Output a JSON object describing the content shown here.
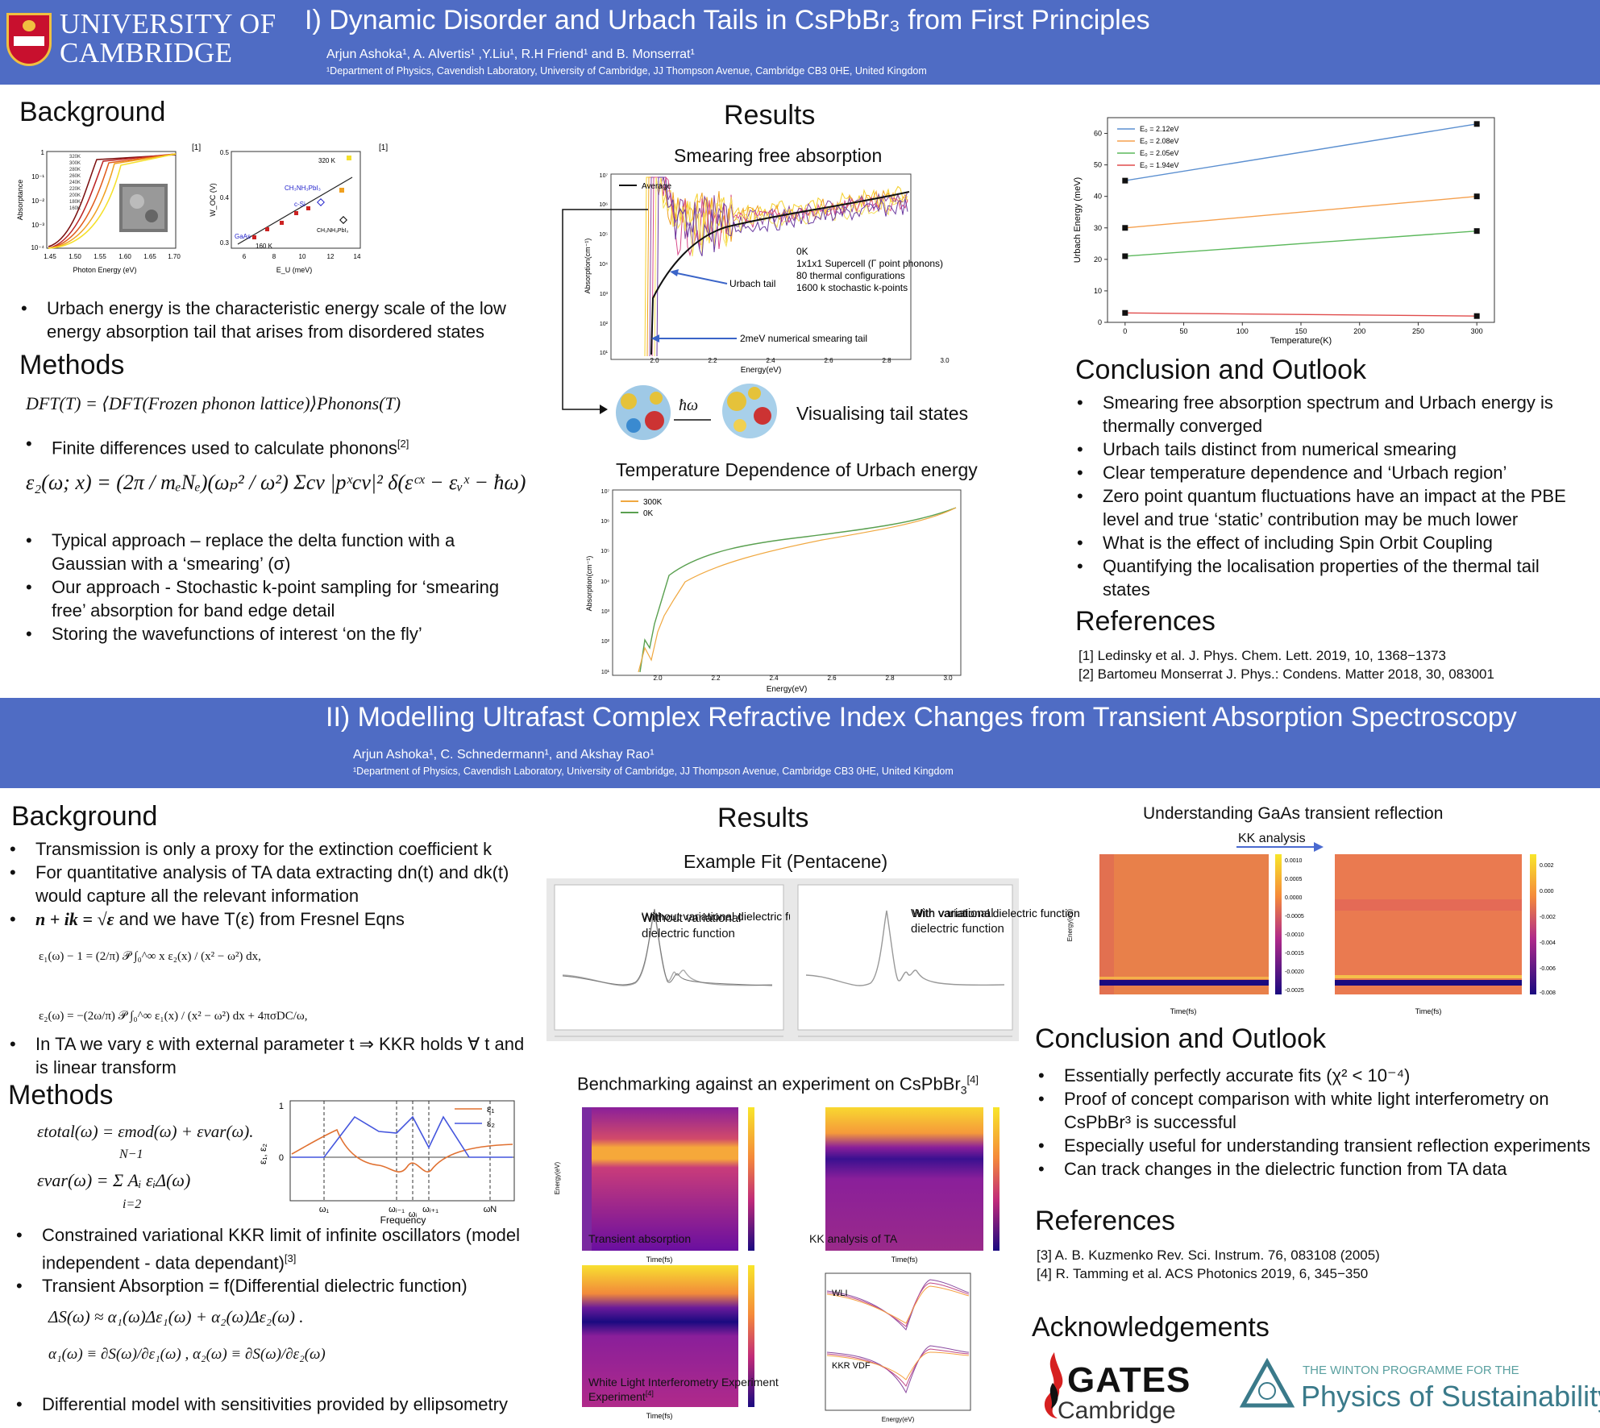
{
  "p1": {
    "banner": {
      "uni_line1": "UNIVERSITY OF",
      "uni_line2": "CAMBRIDGE",
      "title": "I) Dynamic Disorder and Urbach Tails in CsPbBr₃ from First Principles",
      "authors": "Arjun Ashoka¹, A. Alvertis¹ ,Y.Liu¹, R.H Friend¹ and B. Monserrat¹",
      "affiliation": "¹Department of Physics, Cavendish Laboratory, University of Cambridge, JJ Thompson Avenue, Cambridge CB3 0HE, United Kingdom"
    },
    "background": {
      "heading": "Background",
      "ref_a": "[1]",
      "ref_b": "[1]",
      "bullet": "Urbach energy is the characteristic energy scale of the low energy absorption tail that arises from disordered states",
      "fig_a": {
        "xlabel": "Photon Energy (eV)",
        "ylabel": "Absorptance",
        "xticks": [
          "1.45",
          "1.50",
          "1.55",
          "1.60",
          "1.65",
          "1.70"
        ],
        "yticks": [
          "1",
          "10⁻¹",
          "10⁻²",
          "10⁻³",
          "10⁻⁴"
        ],
        "legend": [
          "320K",
          "300K",
          "280K",
          "260K",
          "240K",
          "220K",
          "200K",
          "180K",
          "160K"
        ]
      },
      "fig_b": {
        "xlabel": "E_U (meV)",
        "ylabel": "W_OC (V)",
        "xticks": [
          "6",
          "8",
          "10",
          "12",
          "14"
        ],
        "yticks": [
          "0.5",
          "0.4",
          "0.3"
        ],
        "labels": [
          "320 K",
          "CH₃NH₃PbI₃",
          "c-Si",
          "GaAs",
          "160 K",
          "CH₃NH₃PbI₃"
        ]
      }
    },
    "methods": {
      "heading": "Methods",
      "eq1": "DFT(T) = ⟨DFT(Frozen phonon lattice)⟩Phonons(T)",
      "bullet1": "Finite differences used to calculate phonons",
      "bullet1_sup": "[2]",
      "eq2": "ε₂(ω; x) = (2π / mₑNₑ)(ωₚ² / ω²) Σcv |pˣcv|² δ(εᶜˣ − εᵥˣ − ħω)",
      "bullets": [
        "Typical approach – replace the delta function with a Gaussian with a ‘smearing’ (σ)",
        "Our approach - Stochastic k-point sampling for ‘smearing free’ absorption for band edge detail",
        "Storing the wavefunctions of interest ‘on the fly’"
      ]
    },
    "results": {
      "heading": "Results",
      "sub1": "Smearing free absorption",
      "legend1": "Average",
      "annot": [
        "0K",
        "1x1x1 Supercell (Γ point phonons)",
        "80 thermal configurations",
        "1600 k stochastic k-points"
      ],
      "urbach_tail": "Urbach tail",
      "smearing_tail": "2meV numerical smearing tail",
      "xlabel": "Energy(eV)",
      "ylabel": "Absorption(cm⁻¹)",
      "xticks": [
        "2.0",
        "2.2",
        "2.4",
        "2.6",
        "2.8",
        "3.0"
      ],
      "yticks": [
        "10⁷",
        "10⁶",
        "10⁵",
        "10⁴",
        "10³",
        "10²",
        "10¹"
      ],
      "hw": "ħω",
      "vis": "Visualising tail states",
      "sub2": "Temperature Dependence of Urbach energy",
      "legend2": [
        "300K",
        "0K"
      ]
    },
    "chart_data": {
      "type": "line",
      "title": "",
      "xlabel": "Temperature(K)",
      "ylabel": "Urbach Energy (meV)",
      "xlim": [
        -15,
        315
      ],
      "ylim": [
        0,
        65
      ],
      "xticks": [
        0,
        50,
        100,
        150,
        200,
        250,
        300
      ],
      "yticks": [
        0,
        10,
        20,
        30,
        40,
        50,
        60
      ],
      "x": [
        0,
        300
      ],
      "series": [
        {
          "name": "E₀ = 2.12eV",
          "color": "#5b8fd0",
          "values": [
            45,
            63
          ]
        },
        {
          "name": "E₀ = 2.08eV",
          "color": "#f5a04e",
          "values": [
            30,
            40
          ]
        },
        {
          "name": "E₀ = 2.05eV",
          "color": "#5cb85c",
          "values": [
            21,
            29
          ]
        },
        {
          "name": "E₀ = 1.94eV",
          "color": "#e04c4c",
          "values": [
            3,
            2
          ]
        }
      ],
      "legend": "top-left",
      "grid": false
    },
    "conclusion": {
      "heading": "Conclusion and Outlook",
      "bullets": [
        "Smearing free absorption spectrum and Urbach energy is thermally converged",
        "Urbach tails distinct from numerical smearing",
        "Clear temperature dependence and ‘Urbach region’",
        "Zero point quantum fluctuations have an impact at the PBE level and true ‘static’ contribution may be much lower",
        "What is the effect of including Spin Orbit Coupling",
        "Quantifying the localisation properties of the thermal tail states"
      ]
    },
    "references": {
      "heading": "References",
      "items": [
        "[1] Ledinsky et al. J. Phys. Chem. Lett. 2019, 10, 1368−1373",
        "[2] Bartomeu Monserrat J. Phys.: Condens. Matter 2018, 30, 083001"
      ]
    }
  },
  "p2": {
    "banner": {
      "title": "II) Modelling Ultrafast Complex Refractive Index Changes from Transient Absorption Spectroscopy",
      "authors": "Arjun Ashoka¹, C. Schnedermann¹, and Akshay Rao¹",
      "affiliation": "¹Department of Physics, Cavendish Laboratory, University of Cambridge,  JJ Thompson Avenue, Cambridge CB3 0HE, United Kingdom"
    },
    "background": {
      "heading": "Background",
      "bullets": [
        "Transmission is only a proxy for the extinction coefficient k",
        "For quantitative  analysis of TA data extracting dn(t) and dk(t) would capture all the relevant information"
      ],
      "nik_eq": "n + ik = √ε",
      "nik_text": "and we have T(ε) from Fresnel Eqns",
      "kk1": "ε₁(ω) − 1 = (2/π) 𝒫 ∫₀^∞ x ε₂(x) / (x² − ω²) dx,",
      "kk2": "ε₂(ω) = −(2ω/π) 𝒫 ∫₀^∞ ε₁(x) / (x² − ω²) dx + 4πσDC/ω,",
      "bullet_last": "In TA we vary ε with external parameter t ⇒ KKR holds ∀ t and is linear transform"
    },
    "methods": {
      "heading": "Methods",
      "eq1": "εtotal(ω) = εmod(ω) + εvar(ω).",
      "eq2": "εvar(ω) = Σ Aᵢ εᵢΔ(ω)",
      "sum_top": "N−1",
      "sum_bot": "i=2",
      "osc": {
        "ylabel": "ε₁, ε₂",
        "xlabel": "Frequency",
        "legend": [
          "ε₁",
          "ε₂"
        ],
        "yticks": [
          "1",
          "0"
        ],
        "xticks": [
          "ω₁",
          "ωᵢ₋₁",
          "ωᵢ",
          "ωᵢ₊₁",
          "ωN"
        ]
      },
      "bullet1": "Constrained variational KKR limit of infinite oscillators (model independent - data dependant)",
      "bullet1_sup": "[3]",
      "bullet2": "Transient Absorption  = f(Differential dielectric function)",
      "eq3": "ΔS(ω) ≈ α₁(ω)Δε₁(ω) + α₂(ω)Δε₂(ω) .",
      "eq4": "α₁(ω) ≡ ∂S(ω)/∂ε₁(ω) ,  α₂(ω) ≡ ∂S(ω)/∂ε₂(ω)",
      "bullet3": "Differential model with sensitivities provided by ellipsometry"
    },
    "results": {
      "heading": "Results",
      "fit_title": "Example Fit (Pentacene)",
      "fit_a": "Without variational dielectric function",
      "fit_b": "With variational dielectric function",
      "bench_title": "Benchmarking against an experiment on CsPbBr",
      "bench_sub": "3",
      "bench_sup": "[4]",
      "maps": {
        "ta": "Transient absorption",
        "kk": "KK analysis of TA",
        "wli": "White Light Interferometry Experiment",
        "wli_sup": "[4]",
        "time": "Time(fs)",
        "energy": "Energy(eV)",
        "wli_line": "WLI",
        "kkr_line": "KKR VDF"
      }
    },
    "gaas": {
      "title": "Understanding GaAs transient reflection",
      "arrow": "KK analysis",
      "xlabel": "Time(fs)",
      "ylabel": "Energy(eV)",
      "cb1": [
        "0.0010",
        "0.0005",
        "0.0000",
        "-0.0005",
        "-0.0010",
        "-0.0015",
        "-0.0020",
        "-0.0025"
      ],
      "cb2": [
        "0.002",
        "0.000",
        "-0.002",
        "-0.004",
        "-0.006",
        "-0.008"
      ]
    },
    "conclusion": {
      "heading": "Conclusion and Outlook",
      "bullets": [
        "Essentially perfectly accurate fits (χ² < 10⁻⁴)",
        "Proof of concept comparison with white light interferometry on CsPbBr³ is successful",
        "Especially useful for understanding transient reflection experiments",
        "Can track changes in the dielectric function from TA data"
      ]
    },
    "references": {
      "heading": "References",
      "items": [
        "[3] A. B. Kuzmenko  Rev. Sci. Instrum. 76, 083108 (2005)",
        "[4]  R. Tamming et al. ACS Photonics 2019, 6, 345−350"
      ]
    },
    "ack": {
      "heading": "Acknowledgements",
      "gates1": "GATES",
      "gates2": "Cambridge",
      "winton1": "THE WINTON PROGRAMME FOR THE",
      "winton2": "Physics of Sustainability"
    }
  },
  "colors": {
    "banner": "#4f6cc4",
    "accent": "#3b5bd6"
  }
}
